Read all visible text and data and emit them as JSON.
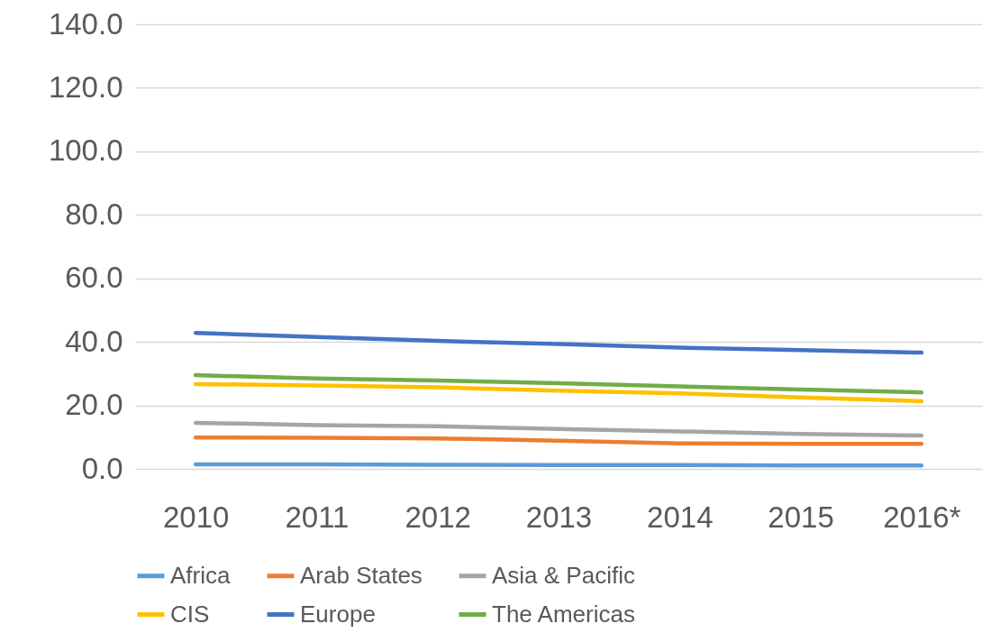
{
  "chart_data": {
    "type": "line",
    "categories": [
      "2010",
      "2011",
      "2012",
      "2013",
      "2014",
      "2015",
      "2016*"
    ],
    "series": [
      {
        "name": "Africa",
        "color": "#5b9bd5",
        "values": [
          1.4,
          1.4,
          1.3,
          1.2,
          1.2,
          1.1,
          1.1
        ]
      },
      {
        "name": "Arab States",
        "color": "#ed7d31",
        "values": [
          9.9,
          9.8,
          9.6,
          8.9,
          8.0,
          7.9,
          7.9
        ]
      },
      {
        "name": "Asia & Pacific",
        "color": "#a5a5a5",
        "values": [
          14.5,
          13.8,
          13.4,
          12.6,
          11.8,
          11.0,
          10.5
        ]
      },
      {
        "name": "CIS",
        "color": "#ffc000",
        "values": [
          26.7,
          26.3,
          25.7,
          24.6,
          23.8,
          22.5,
          21.3
        ]
      },
      {
        "name": "Europe",
        "color": "#4472c4",
        "values": [
          42.8,
          41.5,
          40.3,
          39.3,
          38.2,
          37.4,
          36.6
        ]
      },
      {
        "name": "The Americas",
        "color": "#70ad47",
        "values": [
          29.5,
          28.5,
          27.8,
          27.0,
          26.0,
          25.0,
          24.1
        ]
      }
    ],
    "ylim": [
      0,
      140
    ],
    "yticks": [
      {
        "value": 0,
        "label": "0.0"
      },
      {
        "value": 20,
        "label": "20.0"
      },
      {
        "value": 40,
        "label": "40.0"
      },
      {
        "value": 60,
        "label": "60.0"
      },
      {
        "value": 80,
        "label": "80.0"
      },
      {
        "value": 100,
        "label": "100.0"
      },
      {
        "value": 120,
        "label": "120.0"
      },
      {
        "value": 140,
        "label": "140.0"
      }
    ],
    "grid": "y",
    "legend": "bottom",
    "marker": "none",
    "line_style": "solid"
  }
}
